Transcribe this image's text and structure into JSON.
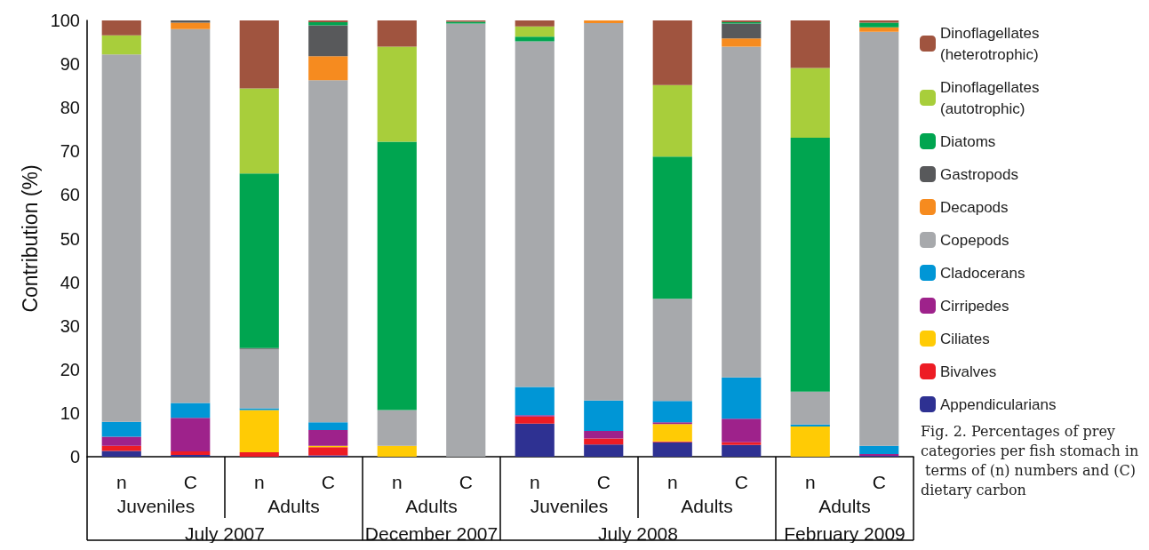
{
  "chart_data": {
    "type": "bar",
    "stacked": true,
    "ylabel": "Contribution (%)",
    "categories": [
      "n",
      "C",
      "n",
      "C",
      "n",
      "C",
      "n",
      "C",
      "n",
      "C",
      "n",
      "C"
    ],
    "ylim": [
      0,
      100
    ],
    "yticks": [
      0,
      10,
      20,
      30,
      40,
      50,
      60,
      70,
      80,
      90,
      100
    ],
    "grid": false,
    "legend": "right",
    "series": [
      {
        "name": "Appendicularians",
        "color": "#2e3192",
        "values": [
          1.3,
          0.4,
          0,
          0.3,
          0,
          0,
          7.6,
          2.8,
          3.3,
          2.7,
          0,
          0.2
        ]
      },
      {
        "name": "Bivalves",
        "color": "#ed1c24",
        "values": [
          1.2,
          0.8,
          1.0,
          1.9,
          0,
          0,
          1.6,
          1.4,
          0.2,
          0.6,
          0,
          0
        ]
      },
      {
        "name": "Ciliates",
        "color": "#ffcb05",
        "values": [
          0,
          0,
          9.7,
          0.3,
          2.5,
          0,
          0,
          0,
          4.0,
          0,
          6.9,
          0
        ]
      },
      {
        "name": "Cirripedes",
        "color": "#9e228b",
        "values": [
          2.1,
          7.7,
          0,
          3.6,
          0,
          0,
          0.3,
          1.7,
          0.4,
          5.4,
          0,
          0.4
        ]
      },
      {
        "name": "Cladocerans",
        "color": "#0096d6",
        "values": [
          3.4,
          3.4,
          0.4,
          1.8,
          0,
          0,
          6.5,
          7.0,
          4.9,
          9.5,
          0.5,
          1.9
        ]
      },
      {
        "name": "Copepods",
        "color": "#a7a9ac",
        "values": [
          84.2,
          85.7,
          13.6,
          78.4,
          8.2,
          99.3,
          79.2,
          86.5,
          23.4,
          75.8,
          7.5,
          94.9
        ]
      },
      {
        "name": "Decapods",
        "color": "#f68b1f",
        "values": [
          0,
          1.5,
          0,
          5.5,
          0,
          0,
          0,
          0.6,
          0,
          1.9,
          0,
          1.0
        ]
      },
      {
        "name": "Gastropods",
        "color": "#58595b",
        "values": [
          0,
          0.5,
          0.2,
          7.1,
          0,
          0,
          0,
          0,
          0,
          3.4,
          0,
          0
        ]
      },
      {
        "name": "Diatoms",
        "color": "#00a550",
        "values": [
          0,
          0,
          40.0,
          0.7,
          61.5,
          0.4,
          1.1,
          0,
          32.6,
          0.3,
          58.2,
          1.1
        ]
      },
      {
        "name": "Dinoflagellates (autotrophic)",
        "color": "#a8ce3b",
        "values": [
          4.4,
          0,
          19.5,
          0,
          21.8,
          0,
          2.3,
          0,
          16.4,
          0,
          16.0,
          0
        ]
      },
      {
        "name": "Dinoflagellates (heterotrophic)",
        "color": "#a0543f",
        "values": [
          3.4,
          0,
          15.6,
          0.4,
          6.0,
          0.3,
          1.4,
          0,
          14.8,
          0.4,
          10.9,
          0.5
        ]
      }
    ],
    "annotations": [
      "Juveniles",
      "Adults",
      "Adults",
      "Juveniles",
      "Adults",
      "Adults",
      "July 2007",
      "December 2007",
      "July 2008",
      "February 2009",
      "Fig. 2. Percentages of prey categories per fish stomach in terms of (n) numbers and (C) dietary carbon"
    ]
  }
}
